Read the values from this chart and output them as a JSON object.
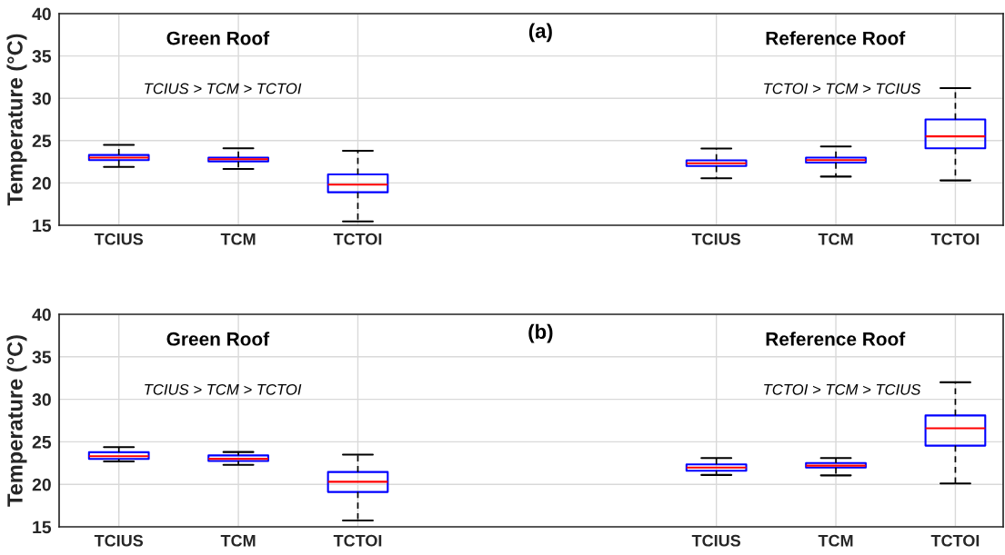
{
  "chart_data": [
    {
      "type": "box",
      "categories": [
        "TCIUS",
        "TCM",
        "TCTOI",
        null,
        null,
        "TCIUS",
        "TCM",
        "TCTOI"
      ],
      "ylabel": "Temperature (°C)",
      "ylim": [
        15,
        40
      ],
      "yticks": [
        15,
        20,
        25,
        30,
        35,
        40
      ],
      "grid": true,
      "annotations": [
        "(a)",
        "Green Roof",
        "Reference Roof",
        "TCIUS > TCM > TCTOI",
        "TCTOI > TCM > TCIUS"
      ],
      "series": [
        {
          "color": "#0000ff",
          "boxes": [
            {
              "low": 21.9,
              "q1": 22.7,
              "median": 23.0,
              "q3": 23.3,
              "high": 24.5
            },
            {
              "low": 21.65,
              "q1": 22.55,
              "median": 22.8,
              "q3": 23.0,
              "high": 24.1
            },
            {
              "low": 15.45,
              "q1": 18.9,
              "median": 19.8,
              "q3": 21.0,
              "high": 23.8
            },
            null,
            null,
            {
              "low": 20.56,
              "q1": 22.0,
              "median": 22.33,
              "q3": 22.67,
              "high": 24.06
            },
            {
              "low": 20.75,
              "q1": 22.4,
              "median": 22.7,
              "q3": 23.0,
              "high": 24.3
            },
            {
              "low": 20.3,
              "q1": 24.1,
              "median": 25.5,
              "q3": 27.5,
              "high": 31.2
            }
          ]
        }
      ]
    },
    {
      "type": "box",
      "categories": [
        "TCIUS",
        "TCM",
        "TCTOI",
        null,
        null,
        "TCIUS",
        "TCM",
        "TCTOI"
      ],
      "ylabel": "Temperature (°C)",
      "ylim": [
        15,
        40
      ],
      "yticks": [
        15,
        20,
        25,
        30,
        35,
        40
      ],
      "grid": true,
      "annotations": [
        "(b)",
        "Green Roof",
        "Reference Roof",
        "TCIUS > TCM > TCTOI",
        "TCTOI > TCM > TCIUS"
      ],
      "series": [
        {
          "color": "#0000ff",
          "boxes": [
            {
              "low": 22.7,
              "q1": 22.98,
              "median": 23.3,
              "q3": 23.77,
              "high": 24.37
            },
            {
              "low": 22.3,
              "q1": 22.75,
              "median": 23.0,
              "q3": 23.4,
              "high": 23.8
            },
            {
              "low": 15.75,
              "q1": 19.1,
              "median": 20.3,
              "q3": 21.45,
              "high": 23.5
            },
            null,
            null,
            {
              "low": 21.1,
              "q1": 21.6,
              "median": 21.97,
              "q3": 22.35,
              "high": 23.1
            },
            {
              "low": 21.05,
              "q1": 21.97,
              "median": 22.2,
              "q3": 22.5,
              "high": 23.1
            },
            {
              "low": 20.1,
              "q1": 24.55,
              "median": 26.6,
              "q3": 28.1,
              "high": 32.0
            }
          ]
        }
      ]
    }
  ]
}
